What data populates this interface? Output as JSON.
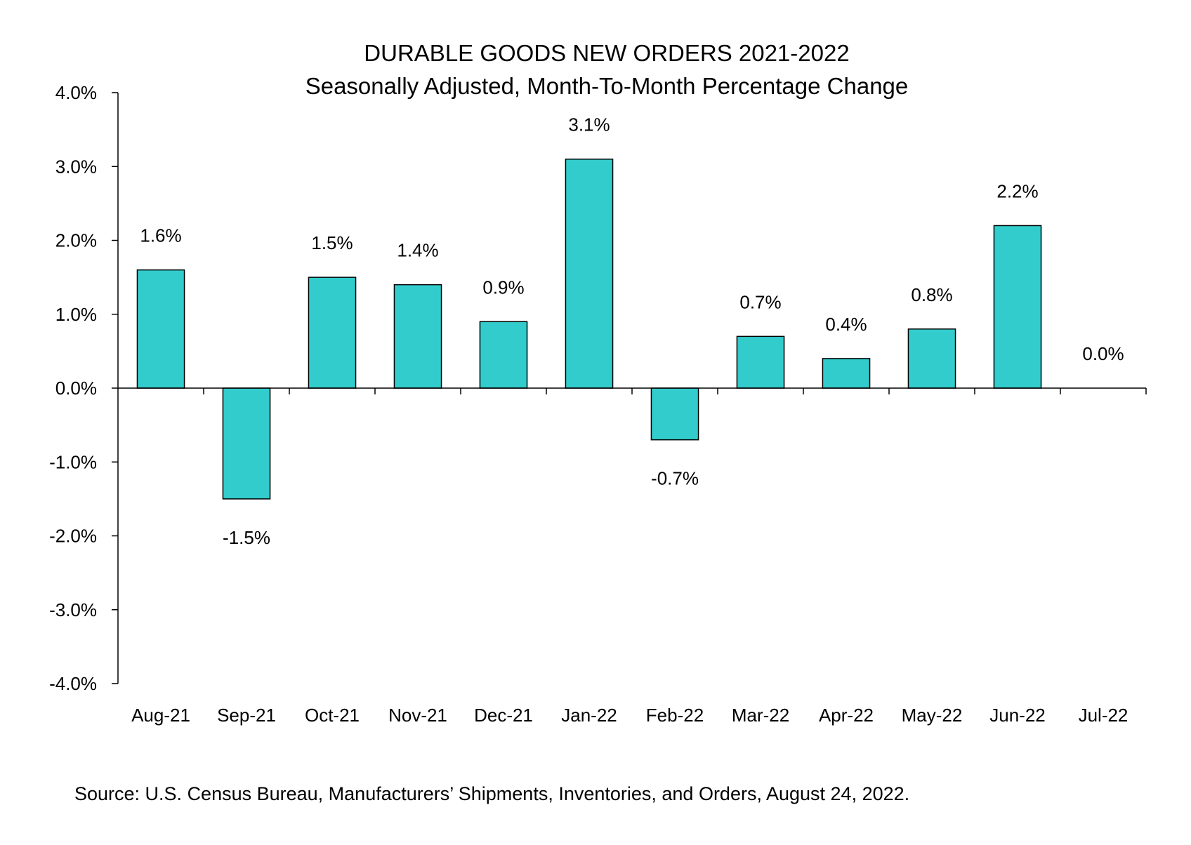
{
  "chart_data": {
    "type": "bar",
    "title": "DURABLE GOODS NEW ORDERS 2021-2022",
    "subtitle": "Seasonally Adjusted,  Month-To-Month Percentage Change",
    "categories": [
      "Aug-21",
      "Sep-21",
      "Oct-21",
      "Nov-21",
      "Dec-21",
      "Jan-22",
      "Feb-22",
      "Mar-22",
      "Apr-22",
      "May-22",
      "Jun-22",
      "Jul-22"
    ],
    "values": [
      1.6,
      -1.5,
      1.5,
      1.4,
      0.9,
      3.1,
      -0.7,
      0.7,
      0.4,
      0.8,
      2.2,
      0.0
    ],
    "data_labels": [
      "1.6%",
      "-1.5%",
      "1.5%",
      "1.4%",
      "0.9%",
      "3.1%",
      "-0.7%",
      "0.7%",
      "0.4%",
      "0.8%",
      "2.2%",
      "0.0%"
    ],
    "y_ticks": [
      4.0,
      3.0,
      2.0,
      1.0,
      0.0,
      -1.0,
      -2.0,
      -3.0,
      -4.0
    ],
    "y_tick_labels": [
      "4.0%",
      "3.0%",
      "2.0%",
      "1.0%",
      "0.0%",
      "-1.0%",
      "-2.0%",
      "-3.0%",
      "-4.0%"
    ],
    "ylim": [
      -4.0,
      4.0
    ],
    "xlabel": "",
    "ylabel": "",
    "grid": false,
    "bar_color": "#33CCCC",
    "bar_edge_color": "#000000"
  },
  "source": "Source: U.S. Census Bureau, Manufacturers’ Shipments, Inventories, and Orders, August 24, 2022."
}
